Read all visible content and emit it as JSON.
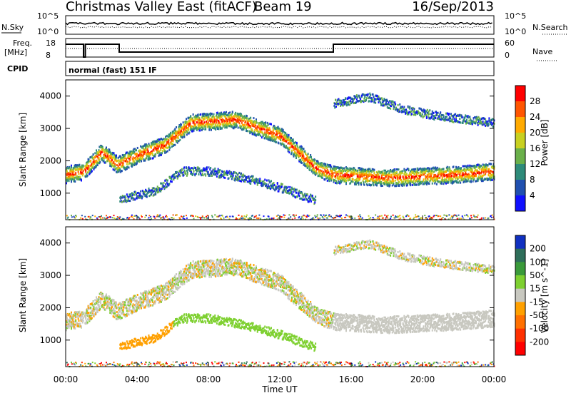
{
  "header": {
    "station": "Christmas Valley East (fitACF)",
    "beam": "Beam 19",
    "date": "16/Sep/2013"
  },
  "strip_panels": {
    "nsky_label": "N.Sky",
    "nsearch_label": "N.Search",
    "nsky_ticks": [
      "10^5",
      "10^0"
    ],
    "nsky_right_ticks": [
      "10^5",
      "10^0"
    ],
    "freq_label": "Freq.",
    "freq_unit": "[MHz]",
    "freq_ticks": [
      "18",
      "8"
    ],
    "nave_label": "Nave",
    "nave_ticks": [
      "60",
      "0"
    ],
    "cpid_label": "CPID",
    "cpid_text": "normal (fast) 151 IF"
  },
  "chart_data": [
    {
      "type": "heatmap",
      "title": "",
      "xlabel": "",
      "ylabel": "Slant Range [km]",
      "x_ticks": [
        "00:00",
        "04:00",
        "08:00",
        "12:00",
        "16:00",
        "20:00",
        "00:00"
      ],
      "y_ticks": [
        "1000",
        "2000",
        "3000",
        "4000"
      ],
      "xlim": [
        0,
        24
      ],
      "ylim": [
        180,
        4500
      ],
      "colorbar": {
        "label": "Power [dB]",
        "ticks": [
          "28",
          "24",
          "20",
          "16",
          "12",
          "8",
          "4"
        ],
        "colors": [
          "#ff0000",
          "#ff5500",
          "#ffaa00",
          "#c8d020",
          "#6ab04a",
          "#2e8b7a",
          "#2050b0",
          "#1010ff"
        ]
      },
      "scatter_bands": [
        {
          "name": "main-echo",
          "points": [
            [
              0.0,
              1600
            ],
            [
              1.0,
              1700
            ],
            [
              2.0,
              2300
            ],
            [
              2.9,
              1900
            ],
            [
              4.0,
              2200
            ],
            [
              5.5,
              2500
            ],
            [
              7.0,
              3200
            ],
            [
              9.5,
              3300
            ],
            [
              12.0,
              2800
            ],
            [
              14.0,
              1800
            ],
            [
              15.0,
              1600
            ],
            [
              18.0,
              1500
            ],
            [
              22.0,
              1600
            ],
            [
              24.0,
              1700
            ]
          ]
        },
        {
          "name": "low-echo",
          "points": [
            [
              3.0,
              850
            ],
            [
              5.0,
              1100
            ],
            [
              6.5,
              1700
            ],
            [
              8.0,
              1700
            ],
            [
              10.0,
              1500
            ],
            [
              12.0,
              1200
            ],
            [
              14.0,
              800
            ]
          ]
        },
        {
          "name": "upper-echo",
          "points": [
            [
              15.0,
              3800
            ],
            [
              17.0,
              4000
            ],
            [
              19.0,
              3600
            ],
            [
              21.0,
              3400
            ],
            [
              24.0,
              3200
            ]
          ]
        }
      ]
    },
    {
      "type": "heatmap",
      "title": "",
      "xlabel": "Time UT",
      "ylabel": "Slant Range [km]",
      "x_ticks": [
        "00:00",
        "04:00",
        "08:00",
        "12:00",
        "16:00",
        "20:00",
        "00:00"
      ],
      "y_ticks": [
        "1000",
        "2000",
        "3000",
        "4000"
      ],
      "xlim": [
        0,
        24
      ],
      "ylim": [
        180,
        4500
      ],
      "colorbar": {
        "label": "Velocity [m s^-1]",
        "ticks": [
          "200",
          "100",
          "50",
          "15",
          "-15",
          "-50",
          "-100",
          "-200"
        ],
        "colors": [
          "#1030c0",
          "#2e6e5a",
          "#3a9a3a",
          "#7ed030",
          "#c8c8c0",
          "#ffa000",
          "#ff7000",
          "#ff3000",
          "#ff0000"
        ]
      }
    }
  ]
}
